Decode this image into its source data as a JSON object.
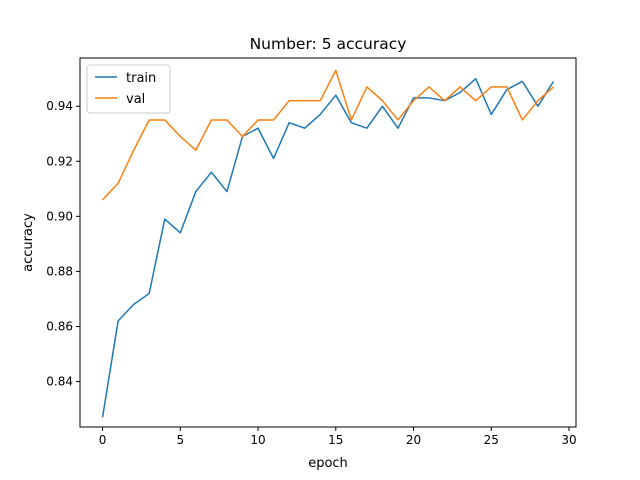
{
  "chart_data": {
    "type": "line",
    "title": "Number: 5 accuracy",
    "xlabel": "epoch",
    "ylabel": "accuracy",
    "xlim": [
      -1.45,
      30.45
    ],
    "ylim": [
      0.8235,
      0.9575
    ],
    "xticks": [
      0,
      5,
      10,
      15,
      20,
      25,
      30
    ],
    "yticks": [
      0.84,
      0.86,
      0.88,
      0.9,
      0.92,
      0.94
    ],
    "ytick_labels": [
      "0.84",
      "0.86",
      "0.88",
      "0.90",
      "0.92",
      "0.94"
    ],
    "grid": false,
    "legend_position": "upper-left",
    "x": [
      0,
      1,
      2,
      3,
      4,
      5,
      6,
      7,
      8,
      9,
      10,
      11,
      12,
      13,
      14,
      15,
      16,
      17,
      18,
      19,
      20,
      21,
      22,
      23,
      24,
      25,
      26,
      27,
      28,
      29
    ],
    "series": [
      {
        "name": "train",
        "color": "#1f77b4",
        "values": [
          0.827,
          0.862,
          0.868,
          0.872,
          0.899,
          0.894,
          0.909,
          0.916,
          0.909,
          0.929,
          0.932,
          0.921,
          0.934,
          0.932,
          0.937,
          0.944,
          0.934,
          0.932,
          0.94,
          0.932,
          0.943,
          0.943,
          0.942,
          0.945,
          0.95,
          0.937,
          0.946,
          0.949,
          0.94,
          0.949
        ]
      },
      {
        "name": "val",
        "color": "#ff7f0e",
        "values": [
          0.906,
          0.912,
          0.924,
          0.935,
          0.935,
          0.929,
          0.924,
          0.935,
          0.935,
          0.929,
          0.935,
          0.935,
          0.942,
          0.942,
          0.942,
          0.953,
          0.935,
          0.947,
          0.942,
          0.935,
          0.942,
          0.947,
          0.942,
          0.947,
          0.942,
          0.947,
          0.947,
          0.935,
          0.942,
          0.947
        ]
      }
    ]
  }
}
